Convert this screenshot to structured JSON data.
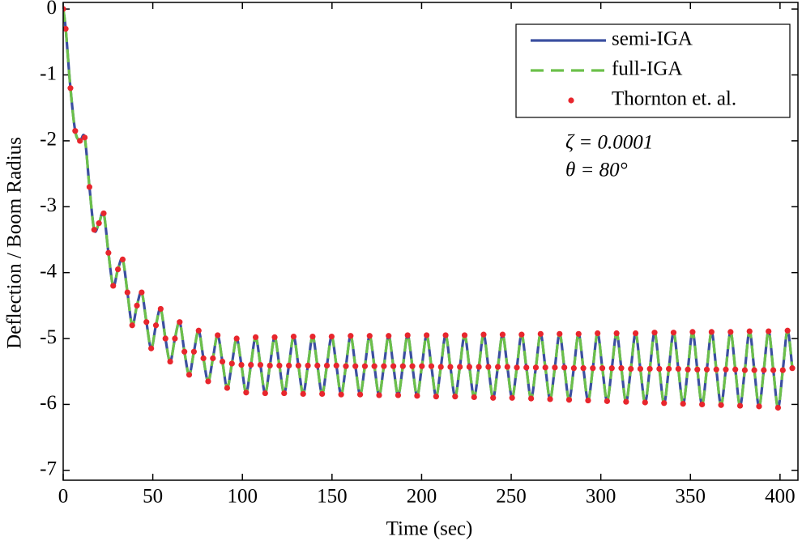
{
  "chart_data": {
    "type": "line",
    "xlabel": "Time (sec)",
    "ylabel": "Deflection / Boom Radius",
    "annotations": [
      "ζ = 0.0001",
      "θ = 80°"
    ],
    "xlim": [
      0,
      410
    ],
    "ylim": [
      -7.15,
      0.1
    ],
    "xticks": [
      0,
      50,
      100,
      150,
      200,
      250,
      300,
      350,
      400
    ],
    "yticks": [
      -7,
      -6,
      -5,
      -4,
      -3,
      -2,
      -1,
      0
    ],
    "legend": "upper right",
    "x": [
      0,
      1.4,
      4.05,
      6.7,
      9.35,
      12,
      14.65,
      17.3,
      19.95,
      22.6,
      25.25,
      27.9,
      30.55,
      33.2,
      35.85,
      38.5,
      41.15,
      43.8,
      46.45,
      49.1,
      51.75,
      54.4,
      57.05,
      59.7,
      62.35,
      65,
      67.65,
      70.3,
      72.95,
      75.6,
      78.25,
      80.9,
      83.55,
      86.2,
      88.85,
      91.5,
      94.15,
      96.8,
      99.45,
      102.1,
      104.75,
      107.4,
      110.05,
      112.7,
      115.35,
      118,
      120.65,
      123.3,
      125.95,
      128.6,
      131.25,
      133.9,
      136.55,
      139.2,
      141.85,
      144.5,
      147.15,
      149.8,
      152.45,
      155.1,
      157.75,
      160.4,
      163.05,
      165.7,
      168.35,
      171,
      173.65,
      176.3,
      178.95,
      181.6,
      184.25,
      186.9,
      189.55,
      192.2,
      194.85,
      197.5,
      200.15,
      202.8,
      205.45,
      208.1,
      210.75,
      213.4,
      216.05,
      218.7,
      221.35,
      224,
      226.65,
      229.3,
      231.95,
      234.6,
      237.25,
      239.9,
      242.55,
      245.2,
      247.85,
      250.5,
      253.15,
      255.8,
      258.45,
      261.1,
      263.75,
      266.4,
      269.05,
      271.7,
      274.35,
      277,
      279.65,
      282.3,
      284.95,
      287.6,
      290.25,
      292.9,
      295.55,
      298.2,
      300.85,
      303.5,
      306.15,
      308.8,
      311.45,
      314.1,
      316.75,
      319.4,
      322.05,
      324.7,
      327.35,
      330,
      332.65,
      335.3,
      337.95,
      340.6,
      343.25,
      345.9,
      348.55,
      351.2,
      353.85,
      356.5,
      359.15,
      361.8,
      364.45,
      367.1,
      369.75,
      372.4,
      375.05,
      377.7,
      380.35,
      383,
      385.65,
      388.3,
      390.95,
      393.6,
      396.25,
      398.9,
      401.55,
      404.2,
      406.85
    ],
    "series": [
      {
        "name": "semi-IGA",
        "color": "#3b4fa0",
        "style": "solid",
        "values": [
          0,
          -0.3,
          -1.2,
          -1.85,
          -2.0,
          -1.95,
          -2.7,
          -3.35,
          -3.25,
          -3.1,
          -3.7,
          -4.2,
          -3.95,
          -3.8,
          -4.3,
          -4.8,
          -4.5,
          -4.3,
          -4.75,
          -5.15,
          -4.8,
          -4.55,
          -5.0,
          -5.35,
          -5.0,
          -4.75,
          -5.2,
          -5.55,
          -5.2,
          -4.88,
          -5.3,
          -5.65,
          -5.3,
          -4.95,
          -5.35,
          -5.75,
          -5.38,
          -5.0,
          -5.4,
          -5.82,
          -5.4,
          -4.98,
          -5.4,
          -5.83,
          -5.41,
          -4.98,
          -5.41,
          -5.83,
          -5.41,
          -4.97,
          -5.41,
          -5.84,
          -5.41,
          -4.97,
          -5.41,
          -5.84,
          -5.41,
          -4.97,
          -5.41,
          -5.85,
          -5.42,
          -4.96,
          -5.42,
          -5.85,
          -5.42,
          -4.96,
          -5.42,
          -5.86,
          -5.42,
          -4.96,
          -5.42,
          -5.86,
          -5.42,
          -4.95,
          -5.42,
          -5.87,
          -5.42,
          -4.95,
          -5.42,
          -5.88,
          -5.43,
          -4.95,
          -5.43,
          -5.88,
          -5.43,
          -4.95,
          -5.43,
          -5.89,
          -5.43,
          -4.94,
          -5.43,
          -5.9,
          -5.43,
          -4.94,
          -5.43,
          -5.9,
          -5.44,
          -4.94,
          -5.44,
          -5.91,
          -5.44,
          -4.93,
          -5.44,
          -5.92,
          -5.44,
          -4.93,
          -5.44,
          -5.93,
          -5.45,
          -4.93,
          -5.45,
          -5.94,
          -5.45,
          -4.92,
          -5.45,
          -5.95,
          -5.45,
          -4.92,
          -5.45,
          -5.96,
          -5.46,
          -4.92,
          -5.46,
          -5.97,
          -5.46,
          -4.91,
          -5.46,
          -5.98,
          -5.46,
          -4.91,
          -5.46,
          -5.99,
          -5.47,
          -4.9,
          -5.47,
          -6.0,
          -5.47,
          -4.9,
          -5.47,
          -6.01,
          -5.47,
          -4.9,
          -5.47,
          -6.02,
          -5.48,
          -4.89,
          -5.48,
          -6.03,
          -5.48,
          -4.89,
          -5.48,
          -6.05,
          -5.48,
          -4.88,
          -5.45
        ]
      },
      {
        "name": "full-IGA",
        "color": "#6cc04a",
        "style": "dashed",
        "values": [
          0,
          -0.3,
          -1.2,
          -1.85,
          -2.0,
          -1.95,
          -2.7,
          -3.35,
          -3.25,
          -3.1,
          -3.7,
          -4.2,
          -3.95,
          -3.8,
          -4.3,
          -4.8,
          -4.5,
          -4.3,
          -4.75,
          -5.15,
          -4.8,
          -4.55,
          -5.0,
          -5.35,
          -5.0,
          -4.75,
          -5.2,
          -5.55,
          -5.2,
          -4.88,
          -5.3,
          -5.65,
          -5.3,
          -4.95,
          -5.35,
          -5.75,
          -5.38,
          -5.0,
          -5.4,
          -5.82,
          -5.4,
          -4.98,
          -5.4,
          -5.83,
          -5.41,
          -4.98,
          -5.41,
          -5.83,
          -5.41,
          -4.97,
          -5.41,
          -5.84,
          -5.41,
          -4.97,
          -5.41,
          -5.84,
          -5.41,
          -4.97,
          -5.41,
          -5.85,
          -5.42,
          -4.96,
          -5.42,
          -5.85,
          -5.42,
          -4.96,
          -5.42,
          -5.86,
          -5.42,
          -4.96,
          -5.42,
          -5.86,
          -5.42,
          -4.95,
          -5.42,
          -5.87,
          -5.42,
          -4.95,
          -5.42,
          -5.88,
          -5.43,
          -4.95,
          -5.43,
          -5.88,
          -5.43,
          -4.95,
          -5.43,
          -5.89,
          -5.43,
          -4.94,
          -5.43,
          -5.9,
          -5.43,
          -4.94,
          -5.43,
          -5.9,
          -5.44,
          -4.94,
          -5.44,
          -5.91,
          -5.44,
          -4.93,
          -5.44,
          -5.92,
          -5.44,
          -4.93,
          -5.44,
          -5.93,
          -5.45,
          -4.93,
          -5.45,
          -5.94,
          -5.45,
          -4.92,
          -5.45,
          -5.95,
          -5.45,
          -4.92,
          -5.45,
          -5.96,
          -5.46,
          -4.92,
          -5.46,
          -5.97,
          -5.46,
          -4.91,
          -5.46,
          -5.98,
          -5.46,
          -4.91,
          -5.46,
          -5.99,
          -5.47,
          -4.9,
          -5.47,
          -6.0,
          -5.47,
          -4.9,
          -5.47,
          -6.01,
          -5.47,
          -4.9,
          -5.47,
          -6.02,
          -5.48,
          -4.89,
          -5.48,
          -6.03,
          -5.48,
          -4.89,
          -5.48,
          -6.05,
          -5.48,
          -4.88,
          -5.45
        ]
      },
      {
        "name": "Thornton et. al.",
        "color": "#e8262d",
        "style": "dots",
        "values": [
          0,
          -0.3,
          -1.2,
          -1.85,
          -2.0,
          -1.95,
          -2.7,
          -3.35,
          -3.25,
          -3.1,
          -3.7,
          -4.2,
          -3.95,
          -3.8,
          -4.3,
          -4.8,
          -4.5,
          -4.3,
          -4.75,
          -5.15,
          -4.8,
          -4.55,
          -5.0,
          -5.35,
          -5.0,
          -4.75,
          -5.2,
          -5.55,
          -5.2,
          -4.88,
          -5.3,
          -5.65,
          -5.3,
          -4.95,
          -5.35,
          -5.75,
          -5.38,
          -5.0,
          -5.4,
          -5.82,
          -5.4,
          -4.98,
          -5.4,
          -5.83,
          -5.41,
          -4.98,
          -5.41,
          -5.83,
          -5.41,
          -4.97,
          -5.41,
          -5.84,
          -5.41,
          -4.97,
          -5.41,
          -5.84,
          -5.41,
          -4.97,
          -5.41,
          -5.85,
          -5.42,
          -4.96,
          -5.42,
          -5.85,
          -5.42,
          -4.96,
          -5.42,
          -5.86,
          -5.42,
          -4.96,
          -5.42,
          -5.86,
          -5.42,
          -4.95,
          -5.42,
          -5.87,
          -5.42,
          -4.95,
          -5.42,
          -5.88,
          -5.43,
          -4.95,
          -5.43,
          -5.88,
          -5.43,
          -4.95,
          -5.43,
          -5.89,
          -5.43,
          -4.94,
          -5.43,
          -5.9,
          -5.43,
          -4.94,
          -5.43,
          -5.9,
          -5.44,
          -4.94,
          -5.44,
          -5.91,
          -5.44,
          -4.93,
          -5.44,
          -5.92,
          -5.44,
          -4.93,
          -5.44,
          -5.93,
          -5.45,
          -4.93,
          -5.45,
          -5.94,
          -5.45,
          -4.92,
          -5.45,
          -5.95,
          -5.45,
          -4.92,
          -5.45,
          -5.96,
          -5.46,
          -4.92,
          -5.46,
          -5.97,
          -5.46,
          -4.91,
          -5.46,
          -5.98,
          -5.46,
          -4.91,
          -5.46,
          -5.99,
          -5.47,
          -4.9,
          -5.47,
          -6.0,
          -5.47,
          -4.9,
          -5.47,
          -6.01,
          -5.47,
          -4.9,
          -5.47,
          -6.02,
          -5.48,
          -4.89,
          -5.48,
          -6.03,
          -5.48,
          -4.89,
          -5.48,
          -6.05,
          -5.48,
          -4.88,
          -5.45
        ]
      }
    ]
  }
}
